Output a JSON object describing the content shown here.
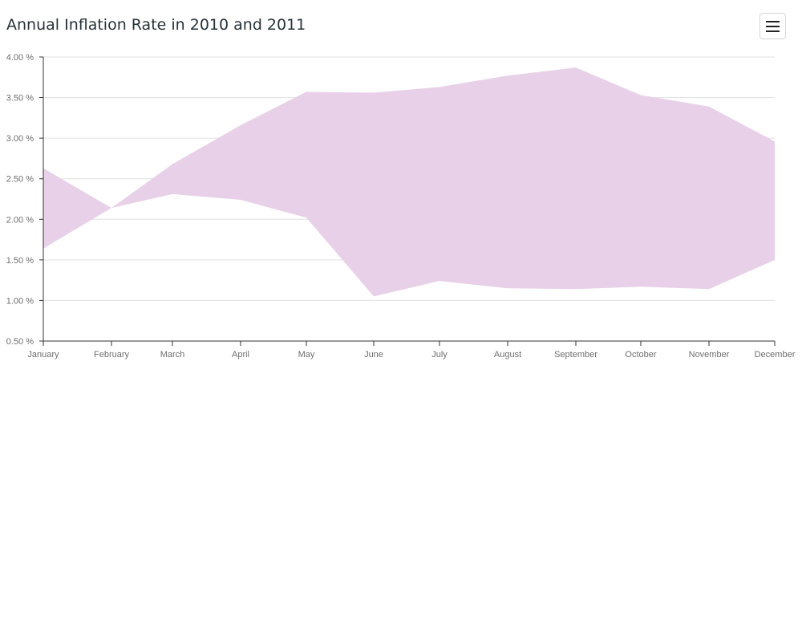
{
  "header": {
    "title": "Annual Inflation Rate in 2010 and 2011",
    "menu_icon": "hamburger-menu-icon"
  },
  "colors": {
    "area_fill": "#e8d1e8",
    "grid": "#e0e0e0",
    "axis": "#333333",
    "tick_text": "#6e6e6e",
    "title_text": "#263238"
  },
  "chart_data": {
    "type": "area",
    "title": "Annual Inflation Rate in 2010 and 2011",
    "subtitle": "",
    "xlabel": "",
    "ylabel": "",
    "categories": [
      "January",
      "February",
      "March",
      "April",
      "May",
      "June",
      "July",
      "August",
      "September",
      "October",
      "November",
      "December"
    ],
    "y_tick_values": [
      0.5,
      1.0,
      1.5,
      2.0,
      2.5,
      3.0,
      3.5,
      4.0
    ],
    "y_tick_labels": [
      "0.50 %",
      "1.00 %",
      "1.50 %",
      "2.00 %",
      "2.50 %",
      "3.00 %",
      "3.50 %",
      "4.00 %"
    ],
    "ylim": [
      0.5,
      4.0
    ],
    "grid": true,
    "legend": "none",
    "series": [
      {
        "values": [
          2.63,
          2.14,
          2.68,
          3.16,
          3.57,
          3.56,
          3.63,
          3.77,
          3.87,
          3.53,
          3.39,
          2.96
        ]
      },
      {
        "values": [
          1.64,
          2.14,
          2.31,
          2.24,
          2.02,
          1.05,
          1.24,
          1.15,
          1.14,
          1.17,
          1.14,
          1.5
        ]
      }
    ]
  }
}
